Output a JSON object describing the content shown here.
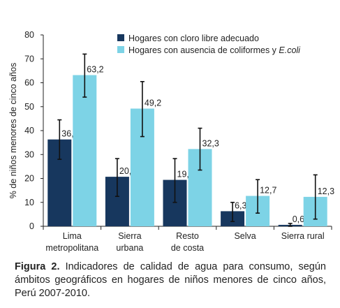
{
  "chart_data": {
    "type": "bar",
    "ylabel": "% de niños menores de cinco años",
    "ylim": [
      0,
      80
    ],
    "yticks": [
      0,
      10,
      20,
      30,
      40,
      50,
      60,
      70,
      80
    ],
    "categories": [
      [
        "Lima",
        "metropolitana"
      ],
      [
        "Sierra",
        "urbana"
      ],
      [
        "Resto",
        "de costa"
      ],
      [
        "Selva"
      ],
      [
        "Sierra rural"
      ]
    ],
    "series": [
      {
        "name": "Hogares con cloro libre adecuado",
        "color": "#17375e",
        "values": [
          36.3,
          20.7,
          19.4,
          6.3,
          0.6
        ],
        "labels": [
          "36,3",
          "20,7",
          "19,4",
          "6,3",
          "0,6"
        ],
        "error_low": [
          28,
          12.5,
          10,
          2,
          0
        ],
        "error_high": [
          44.5,
          28.3,
          28.3,
          10,
          1.2
        ]
      },
      {
        "name_prefix": "Hogares con ausencia de coliformes y ",
        "name_italic": "E.coli",
        "color": "#7dd3e6",
        "values": [
          63.2,
          49.2,
          32.3,
          12.7,
          12.3
        ],
        "labels": [
          "63,2",
          "49,2",
          "32,3",
          "12,7",
          "12,3"
        ],
        "error_low": [
          54,
          37.5,
          23.5,
          5.5,
          3
        ],
        "error_high": [
          72,
          60.5,
          41,
          19.5,
          21.5
        ]
      }
    ],
    "legend_position": "top-right",
    "grid": false
  },
  "caption": {
    "label": "Figura 2.",
    "text": " Indicadores de calidad de agua para consumo, según ámbitos geográficos en hogares de niños menores de cinco años, Perú 2007-2010."
  }
}
